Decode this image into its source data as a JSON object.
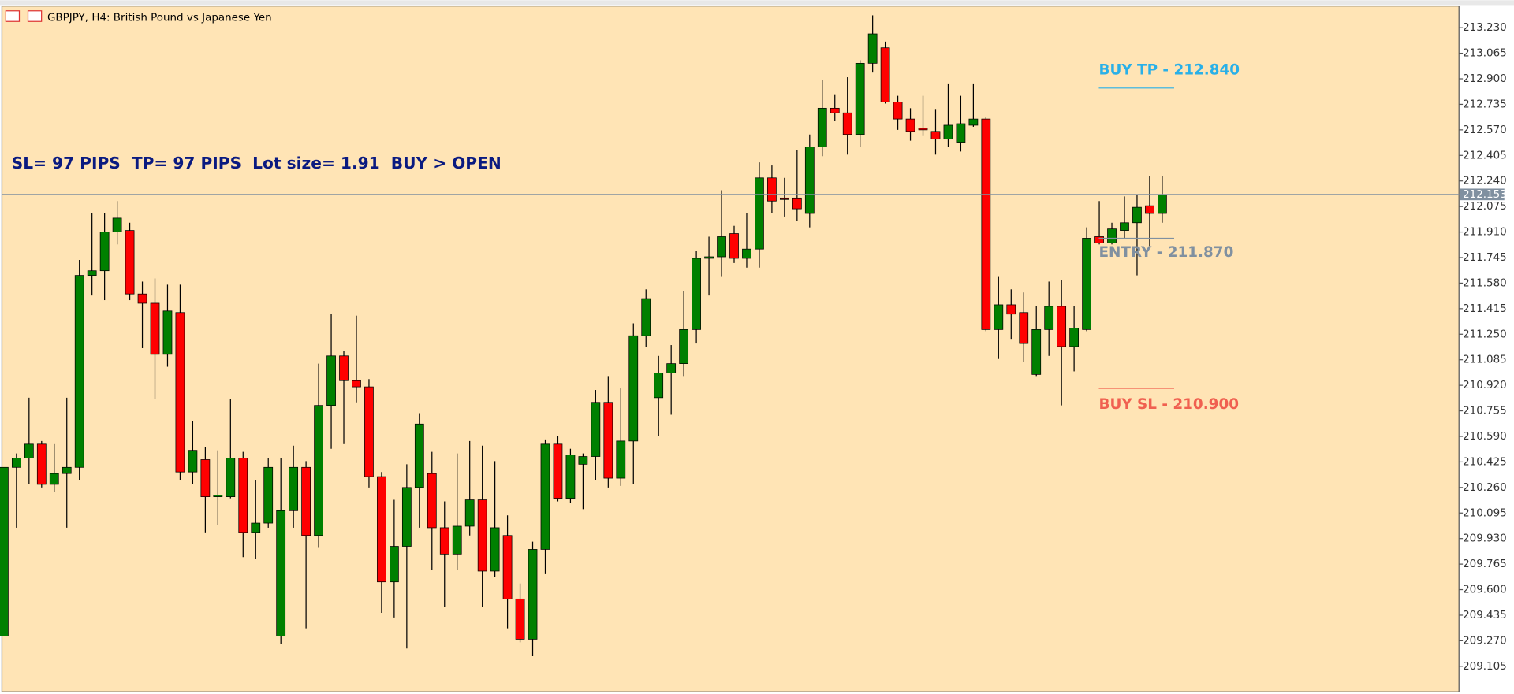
{
  "chart_data": {
    "type": "candlestick",
    "title": "GBPJPY, H4:  British Pound vs Japanese Yen",
    "annotation": "SL= 97 PIPS  TP= 97 PIPS  Lot size= 1.91  BUY > OPEN",
    "up_color": "#008000",
    "down_color": "#ff0000",
    "ylim": [
      208.94,
      213.37
    ],
    "yticks": [
      {
        "value": 213.23,
        "label": "213.230"
      },
      213.065,
      {
        "value": 212.9,
        "label": "212.900"
      },
      212.735,
      {
        "value": 212.57,
        "label": "212.570"
      },
      212.405,
      {
        "value": 212.24,
        "label": "212.240"
      },
      212.075,
      {
        "value": 211.91,
        "label": "211.910"
      },
      211.745,
      {
        "value": 211.58,
        "label": "211.580"
      },
      211.415,
      {
        "value": 211.25,
        "label": "211.250"
      },
      211.085,
      {
        "value": 210.92,
        "label": "210.920"
      },
      210.755,
      {
        "value": 210.59,
        "label": "210.590"
      },
      210.425,
      {
        "value": 210.26,
        "label": "210.260"
      },
      210.095,
      {
        "value": 209.93,
        "label": "209.930"
      },
      209.765,
      {
        "value": 209.6,
        "label": "209.600"
      },
      209.435,
      {
        "value": 209.27,
        "label": "209.270"
      },
      209.105
    ],
    "price_line": 212.153,
    "levels": [
      {
        "label": "BUY TP - 212.840",
        "value": 212.84,
        "color": "#29b0e8"
      },
      {
        "label": "ENTRY - 211.870",
        "value": 211.87,
        "color": "#8090a0"
      },
      {
        "label": "BUY SL - 210.900",
        "value": 210.9,
        "color": "#f06050"
      }
    ],
    "open": [
      209.3,
      210.39,
      210.45,
      210.54,
      210.28,
      210.35,
      210.39,
      211.63,
      211.66,
      211.91,
      211.92,
      211.51,
      211.45,
      211.12,
      211.39,
      210.36,
      210.44,
      210.2,
      210.2,
      210.45,
      209.97,
      210.03,
      209.3,
      210.11,
      210.39,
      209.95,
      210.79,
      211.11,
      210.95,
      210.91,
      210.33,
      209.65,
      209.88,
      210.26,
      210.35,
      210.0,
      209.83,
      210.01,
      210.18,
      209.72,
      209.95,
      209.54,
      209.28,
      209.86,
      210.54,
      210.19,
      210.41,
      210.46,
      210.81,
      210.32,
      210.56,
      211.24,
      210.84,
      211.0,
      211.06,
      211.28,
      211.74,
      211.75,
      211.9,
      211.74,
      211.8,
      212.26,
      212.13,
      212.13,
      212.03,
      212.46,
      212.71,
      212.68,
      212.54,
      213.0,
      213.1,
      212.75,
      212.64,
      212.58,
      212.56,
      212.51,
      212.49,
      212.6,
      212.64,
      211.28,
      211.44,
      211.39,
      210.99,
      211.28,
      211.43,
      211.17,
      211.28,
      211.88,
      211.84,
      211.92,
      211.97,
      212.08,
      212.03
    ],
    "high": [
      210.39,
      210.48,
      210.84,
      210.56,
      210.54,
      210.84,
      211.73,
      212.03,
      212.03,
      212.11,
      211.97,
      211.59,
      211.61,
      211.57,
      211.57,
      210.69,
      210.52,
      210.5,
      210.83,
      210.49,
      210.31,
      210.45,
      210.45,
      210.53,
      210.43,
      211.06,
      211.38,
      211.14,
      211.37,
      210.96,
      210.36,
      210.18,
      210.41,
      210.74,
      210.49,
      210.17,
      210.48,
      210.56,
      210.53,
      210.43,
      210.08,
      209.64,
      209.91,
      210.57,
      210.59,
      210.51,
      210.48,
      210.89,
      210.98,
      210.9,
      211.32,
      211.54,
      211.11,
      211.18,
      211.53,
      211.79,
      211.88,
      212.18,
      211.95,
      212.03,
      212.36,
      212.34,
      212.26,
      212.44,
      212.54,
      212.89,
      212.8,
      212.91,
      213.02,
      213.31,
      213.14,
      212.79,
      212.71,
      212.79,
      212.7,
      212.87,
      212.79,
      212.87,
      212.65,
      211.62,
      211.54,
      211.52,
      211.43,
      211.59,
      211.6,
      211.43,
      211.94,
      212.11,
      211.97,
      212.14,
      212.15,
      212.27,
      212.27
    ],
    "low": [
      209.3,
      210.0,
      210.28,
      210.26,
      210.23,
      210.0,
      210.31,
      211.5,
      211.47,
      211.83,
      211.47,
      211.16,
      210.83,
      211.04,
      210.31,
      210.28,
      209.97,
      210.02,
      210.19,
      209.81,
      209.8,
      210.0,
      209.25,
      210.0,
      209.35,
      209.87,
      210.51,
      210.54,
      210.81,
      210.26,
      209.45,
      209.42,
      209.22,
      210.0,
      209.73,
      209.49,
      209.73,
      209.95,
      209.49,
      209.68,
      209.35,
      209.26,
      209.17,
      209.7,
      210.17,
      210.16,
      210.12,
      210.31,
      210.26,
      210.27,
      210.28,
      211.17,
      210.59,
      210.73,
      210.98,
      211.19,
      211.5,
      211.62,
      211.71,
      211.68,
      211.68,
      212.03,
      212.01,
      211.98,
      211.94,
      212.4,
      212.63,
      212.41,
      212.46,
      212.94,
      212.74,
      212.57,
      212.5,
      212.53,
      212.41,
      212.46,
      212.43,
      212.59,
      211.27,
      211.09,
      211.22,
      211.07,
      210.98,
      211.11,
      210.79,
      211.01,
      211.27,
      211.83,
      211.83,
      211.87,
      211.63,
      211.82,
      211.97
    ],
    "close": [
      210.39,
      210.45,
      210.54,
      210.28,
      210.35,
      210.39,
      211.63,
      211.66,
      211.91,
      212.0,
      211.51,
      211.45,
      211.12,
      211.4,
      210.36,
      210.5,
      210.2,
      210.21,
      210.45,
      209.97,
      210.03,
      210.39,
      210.11,
      210.39,
      209.95,
      210.79,
      211.11,
      210.95,
      210.91,
      210.33,
      209.65,
      209.88,
      210.26,
      210.67,
      210.0,
      209.83,
      210.01,
      210.18,
      209.72,
      210.0,
      209.54,
      209.28,
      209.86,
      210.54,
      210.19,
      210.47,
      210.46,
      210.81,
      210.32,
      210.56,
      211.24,
      211.48,
      211.0,
      211.06,
      211.28,
      211.74,
      211.75,
      211.88,
      211.74,
      211.8,
      212.26,
      212.11,
      212.12,
      212.06,
      212.46,
      212.71,
      212.68,
      212.54,
      213.0,
      213.19,
      212.75,
      212.64,
      212.56,
      212.57,
      212.51,
      212.6,
      212.61,
      212.64,
      211.28,
      211.44,
      211.38,
      211.19,
      211.28,
      211.43,
      211.17,
      211.29,
      211.87,
      211.84,
      211.93,
      211.97,
      212.07,
      212.03,
      212.15
    ]
  }
}
